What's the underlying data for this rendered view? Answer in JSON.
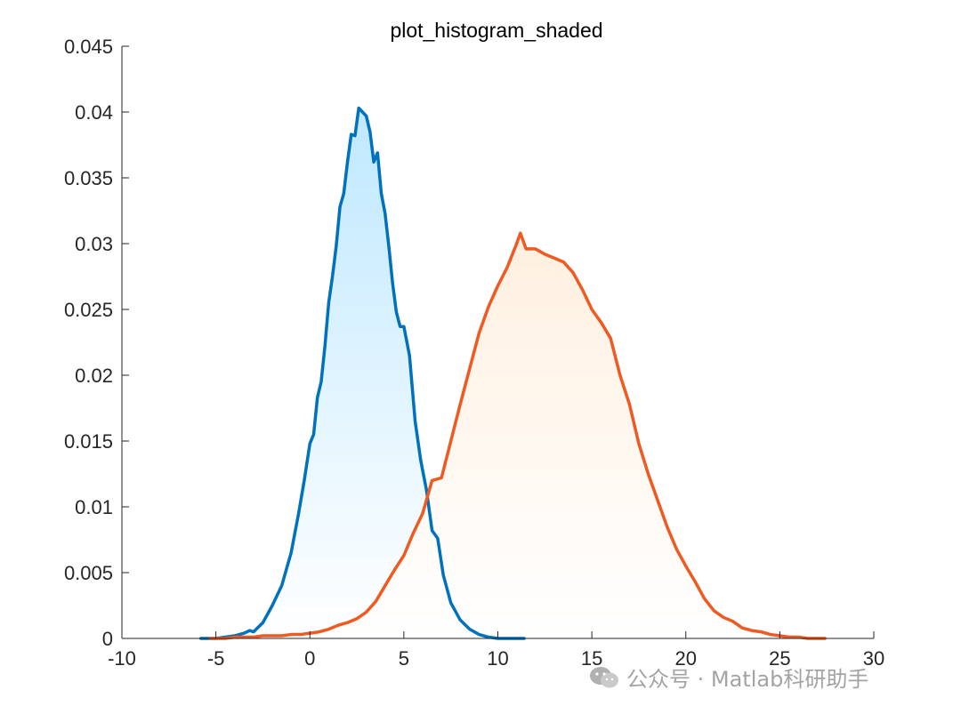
{
  "chart_data": {
    "type": "area",
    "title": "plot_histogram_shaded",
    "xlabel": "",
    "ylabel": "",
    "xlim": [
      -10,
      30
    ],
    "ylim": [
      0,
      0.045
    ],
    "xticks": [
      -10,
      -5,
      0,
      5,
      10,
      15,
      20,
      25,
      30
    ],
    "yticks": [
      0,
      0.005,
      0.01,
      0.015,
      0.02,
      0.025,
      0.03,
      0.035,
      0.04,
      0.045
    ],
    "xtick_labels": [
      "-10",
      "-5",
      "0",
      "5",
      "10",
      "15",
      "20",
      "25",
      "30"
    ],
    "ytick_labels": [
      "0",
      "0.005",
      "0.01",
      "0.015",
      "0.02",
      "0.025",
      "0.03",
      "0.035",
      "0.04",
      "0.045"
    ],
    "grid": false,
    "legend": "none",
    "series": [
      {
        "color": "#0072BD",
        "fill_top": "#bfe8ff",
        "fill_bottom": "#ffffff",
        "x": [
          -5.8,
          -5.0,
          -4.5,
          -4.0,
          -3.5,
          -3.2,
          -3.0,
          -2.5,
          -2.0,
          -1.5,
          -1.0,
          -0.6,
          -0.3,
          0.0,
          0.2,
          0.4,
          0.6,
          0.8,
          1.0,
          1.2,
          1.4,
          1.6,
          1.8,
          2.0,
          2.2,
          2.4,
          2.6,
          2.8,
          3.0,
          3.2,
          3.4,
          3.6,
          3.8,
          4.0,
          4.2,
          4.4,
          4.6,
          4.8,
          5.0,
          5.3,
          5.6,
          5.9,
          6.2,
          6.5,
          6.8,
          7.1,
          7.5,
          8.0,
          8.5,
          9.0,
          9.5,
          10.0,
          10.5,
          11.4
        ],
        "y": [
          0.0,
          0.0,
          0.0001,
          0.0002,
          0.0004,
          0.0006,
          0.0005,
          0.0012,
          0.0025,
          0.004,
          0.0065,
          0.0095,
          0.012,
          0.0148,
          0.0155,
          0.0183,
          0.0195,
          0.0222,
          0.0255,
          0.0275,
          0.0298,
          0.0328,
          0.0338,
          0.0362,
          0.0383,
          0.0382,
          0.0403,
          0.04,
          0.0397,
          0.0385,
          0.0362,
          0.0369,
          0.0338,
          0.0323,
          0.0298,
          0.027,
          0.0248,
          0.0237,
          0.0237,
          0.0215,
          0.0165,
          0.0135,
          0.0113,
          0.0082,
          0.0076,
          0.0048,
          0.0027,
          0.0014,
          0.0007,
          0.0003,
          0.0001,
          0.0,
          0.0,
          0.0
        ]
      },
      {
        "color": "#EE5A22",
        "fill_top": "#fff0e0",
        "fill_bottom": "#ffffff",
        "x": [
          -5.3,
          -4.5,
          -4.0,
          -3.5,
          -3.0,
          -2.5,
          -2.0,
          -1.5,
          -1.0,
          -0.5,
          0.0,
          0.5,
          1.0,
          1.5,
          2.0,
          2.5,
          3.0,
          3.5,
          4.0,
          4.5,
          5.0,
          5.5,
          6.0,
          6.5,
          7.0,
          7.5,
          8.0,
          8.5,
          9.0,
          9.5,
          10.0,
          10.5,
          11.0,
          11.2,
          11.5,
          12.0,
          12.5,
          13.0,
          13.5,
          14.0,
          14.5,
          15.0,
          15.5,
          16.0,
          16.5,
          17.0,
          17.5,
          18.0,
          18.5,
          19.0,
          19.5,
          20.0,
          20.5,
          21.0,
          21.5,
          22.0,
          22.5,
          23.0,
          23.5,
          24.0,
          24.5,
          25.0,
          25.5,
          26.0,
          26.5,
          27.0,
          27.4
        ],
        "y": [
          0.0,
          0.0,
          0.0001,
          0.0001,
          0.0001,
          0.0002,
          0.0002,
          0.0002,
          0.0003,
          0.0003,
          0.0004,
          0.0005,
          0.0007,
          0.001,
          0.0012,
          0.0015,
          0.002,
          0.0028,
          0.004,
          0.0052,
          0.0063,
          0.008,
          0.0095,
          0.012,
          0.0122,
          0.015,
          0.0178,
          0.0205,
          0.0232,
          0.0252,
          0.0268,
          0.0282,
          0.03,
          0.0308,
          0.0296,
          0.0296,
          0.0292,
          0.0289,
          0.0286,
          0.0278,
          0.0265,
          0.025,
          0.024,
          0.0228,
          0.02,
          0.0178,
          0.0148,
          0.0125,
          0.0105,
          0.0085,
          0.0068,
          0.0055,
          0.0043,
          0.003,
          0.0021,
          0.0016,
          0.0013,
          0.0008,
          0.0006,
          0.0005,
          0.0003,
          0.0002,
          0.0001,
          0.0001,
          0.0,
          0.0,
          0.0
        ]
      }
    ]
  },
  "watermark": {
    "text": "公众号 · Matlab科研助手",
    "icon": "wechat-icon"
  }
}
